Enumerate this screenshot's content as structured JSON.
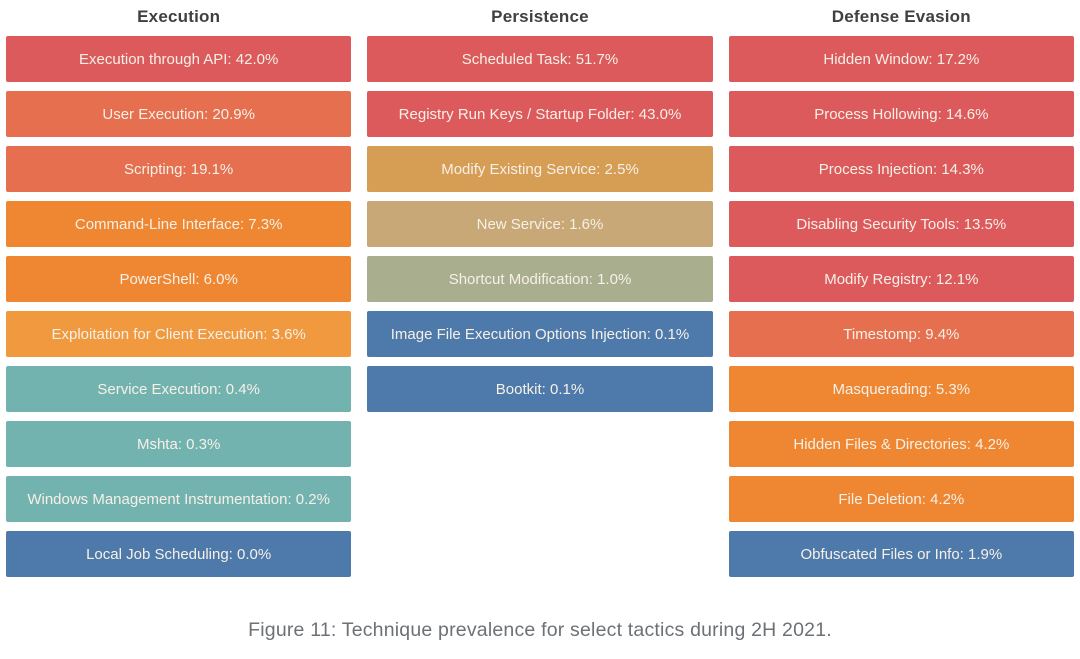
{
  "caption": "Figure 11: Technique prevalence for select tactics during 2H 2021.",
  "colors": {
    "background": "#ffffff",
    "header_text": "#3f4040",
    "caption_text": "#6d7175",
    "text_on_bar": "#f7f0e7",
    "red": "#dc5a5c",
    "coral": "#e56f4e",
    "orange": "#ee8632",
    "light_orange": "#f0993f",
    "teal": "#72b3b0",
    "blue": "#4d7aab",
    "gold": "#d69d55",
    "khaki": "#c7a876",
    "sage": "#a9ae8e"
  },
  "columns": [
    {
      "title": "Execution",
      "bars": [
        {
          "label": "Execution through API: 42.0%",
          "color": "#dc5a5c"
        },
        {
          "label": "User Execution: 20.9%",
          "color": "#e56f4e"
        },
        {
          "label": "Scripting: 19.1%",
          "color": "#e56f4e"
        },
        {
          "label": "Command-Line Interface: 7.3%",
          "color": "#ee8632"
        },
        {
          "label": "PowerShell: 6.0%",
          "color": "#ee8632"
        },
        {
          "label": "Exploitation for Client Execution: 3.6%",
          "color": "#f0993f"
        },
        {
          "label": "Service Execution: 0.4%",
          "color": "#72b3b0"
        },
        {
          "label": "Mshta: 0.3%",
          "color": "#72b3b0"
        },
        {
          "label": "Windows Management Instrumentation: 0.2%",
          "color": "#72b3b0"
        },
        {
          "label": "Local Job Scheduling: 0.0%",
          "color": "#4d7aab"
        }
      ]
    },
    {
      "title": "Persistence",
      "bars": [
        {
          "label": "Scheduled Task: 51.7%",
          "color": "#dc5a5c"
        },
        {
          "label": "Registry Run Keys / Startup Folder: 43.0%",
          "color": "#dc5a5c"
        },
        {
          "label": "Modify Existing Service: 2.5%",
          "color": "#d69d55"
        },
        {
          "label": "New Service: 1.6%",
          "color": "#c7a876"
        },
        {
          "label": "Shortcut Modification: 1.0%",
          "color": "#a9ae8e"
        },
        {
          "label": "Image File Execution Options Injection: 0.1%",
          "color": "#4d7aab"
        },
        {
          "label": "Bootkit: 0.1%",
          "color": "#4d7aab"
        }
      ]
    },
    {
      "title": "Defense Evasion",
      "bars": [
        {
          "label": "Hidden Window: 17.2%",
          "color": "#dc5a5c"
        },
        {
          "label": "Process Hollowing: 14.6%",
          "color": "#dc5a5c"
        },
        {
          "label": "Process Injection: 14.3%",
          "color": "#dc5a5c"
        },
        {
          "label": "Disabling Security Tools: 13.5%",
          "color": "#dc5a5c"
        },
        {
          "label": "Modify Registry: 12.1%",
          "color": "#dc5a5c"
        },
        {
          "label": "Timestomp: 9.4%",
          "color": "#e56f4e"
        },
        {
          "label": "Masquerading: 5.3%",
          "color": "#ee8632"
        },
        {
          "label": "Hidden Files & Directories: 4.2%",
          "color": "#ee8632"
        },
        {
          "label": "File Deletion: 4.2%",
          "color": "#ee8632"
        },
        {
          "label": "Obfuscated Files or Info: 1.9%",
          "color": "#4d7aab"
        }
      ]
    }
  ],
  "chart_data": [
    {
      "type": "bar",
      "title": "Execution",
      "categories": [
        "Execution through API",
        "User Execution",
        "Scripting",
        "Command-Line Interface",
        "PowerShell",
        "Exploitation for Client Execution",
        "Service Execution",
        "Mshta",
        "Windows Management Instrumentation",
        "Local Job Scheduling"
      ],
      "values": [
        42.0,
        20.9,
        19.1,
        7.3,
        6.0,
        3.6,
        0.4,
        0.3,
        0.2,
        0.0
      ],
      "unit": "%",
      "legend_position": "none",
      "grid": false
    },
    {
      "type": "bar",
      "title": "Persistence",
      "categories": [
        "Scheduled Task",
        "Registry Run Keys / Startup Folder",
        "Modify Existing Service",
        "New Service",
        "Shortcut Modification",
        "Image File Execution Options Injection",
        "Bootkit"
      ],
      "values": [
        51.7,
        43.0,
        2.5,
        1.6,
        1.0,
        0.1,
        0.1
      ],
      "unit": "%",
      "legend_position": "none",
      "grid": false
    },
    {
      "type": "bar",
      "title": "Defense Evasion",
      "categories": [
        "Hidden Window",
        "Process Hollowing",
        "Process Injection",
        "Disabling Security Tools",
        "Modify Registry",
        "Timestomp",
        "Masquerading",
        "Hidden Files & Directories",
        "File Deletion",
        "Obfuscated Files or Info"
      ],
      "values": [
        17.2,
        14.6,
        14.3,
        13.5,
        12.1,
        9.4,
        5.3,
        4.2,
        4.2,
        1.9
      ],
      "unit": "%",
      "legend_position": "none",
      "grid": false
    }
  ]
}
